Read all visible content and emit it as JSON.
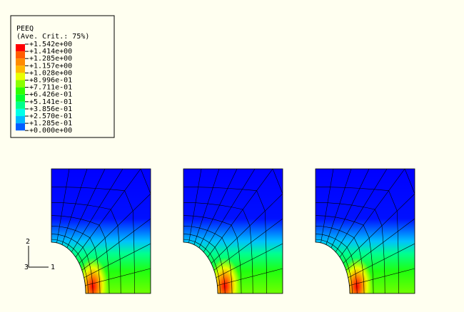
{
  "legend": {
    "title": "PEEQ",
    "subtitle": "(Ave. Crit.: 75%)",
    "labels": [
      "+1.542e+00",
      "+1.414e+00",
      "+1.285e+00",
      "+1.157e+00",
      "+1.028e+00",
      "+8.996e-01",
      "+7.711e-01",
      "+6.426e-01",
      "+5.141e-01",
      "+3.856e-01",
      "+2.570e-01",
      "+1.285e-01",
      "+0.000e+00"
    ],
    "band_colors": [
      "#ff0000",
      "#ff5d00",
      "#ff8b00",
      "#ffb900",
      "#e8ff00",
      "#8bff00",
      "#2eff00",
      "#00ff2e",
      "#00ff8b",
      "#00ffe8",
      "#00b9ff",
      "#005dff",
      "#0000ff"
    ]
  },
  "triad": {
    "axis_2": "2",
    "axis_3": "3",
    "axis_1": "1"
  }
}
